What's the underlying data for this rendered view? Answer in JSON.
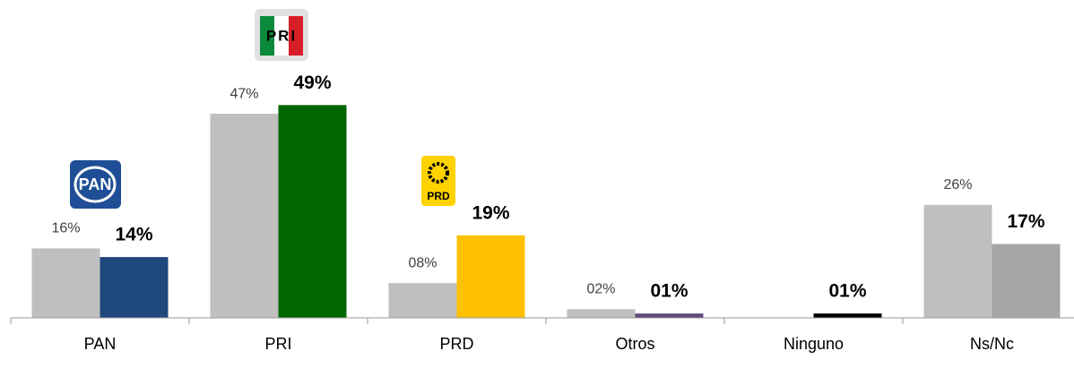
{
  "chart_data": {
    "type": "bar",
    "categories": [
      "PAN",
      "PRI",
      "PRD",
      "Otros",
      "Ninguno",
      "Ns/Nc"
    ],
    "series": [
      {
        "color": "#bfbfbf",
        "values": [
          16,
          47,
          8,
          2,
          0,
          26
        ],
        "value_labels": [
          "16%",
          "47%",
          "08%",
          "02%",
          null,
          "26%"
        ]
      },
      {
        "colors": [
          "#1f497d",
          "#006600",
          "#ffc000",
          "#604a7b",
          "#000000",
          "#a6a6a6"
        ],
        "values": [
          14,
          49,
          19,
          1,
          1,
          17
        ],
        "value_labels": [
          "14%",
          "49%",
          "19%",
          "01%",
          "01%",
          "17%"
        ]
      }
    ]
  }
}
